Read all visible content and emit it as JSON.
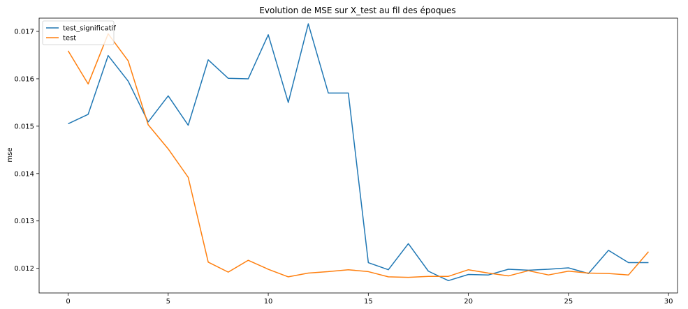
{
  "chart_data": {
    "type": "line",
    "title": "Evolution de MSE sur X_test au fil des époques",
    "xlabel": "",
    "ylabel": "mse",
    "xlim": [
      -1.45,
      30.45
    ],
    "ylim": [
      0.01148,
      0.01728
    ],
    "xticks": [
      0,
      5,
      10,
      15,
      20,
      25,
      30
    ],
    "xtick_labels": [
      "0",
      "5",
      "10",
      "15",
      "20",
      "25",
      "30"
    ],
    "yticks": [
      0.012,
      0.013,
      0.014,
      0.015,
      0.016,
      0.017
    ],
    "ytick_labels": [
      "0.012",
      "0.013",
      "0.014",
      "0.015",
      "0.016",
      "0.017"
    ],
    "grid": false,
    "legend_position": "top-left",
    "x": [
      0,
      1,
      2,
      3,
      4,
      5,
      6,
      7,
      8,
      9,
      10,
      11,
      12,
      13,
      14,
      15,
      16,
      17,
      18,
      19,
      20,
      21,
      22,
      23,
      24,
      25,
      26,
      27,
      28,
      29
    ],
    "series": [
      {
        "name": "test_significatif",
        "color": "#1f77b4",
        "values": [
          0.01505,
          0.01525,
          0.01649,
          0.01595,
          0.01509,
          0.01564,
          0.01502,
          0.0164,
          0.01601,
          0.016,
          0.01693,
          0.0155,
          0.01716,
          0.0157,
          0.0157,
          0.01212,
          0.01197,
          0.01252,
          0.01194,
          0.01174,
          0.01187,
          0.01186,
          0.01198,
          0.01196,
          0.01198,
          0.01201,
          0.01189,
          0.01238,
          0.01212,
          0.01212
        ]
      },
      {
        "name": "test",
        "color": "#ff7f0e",
        "values": [
          0.01659,
          0.01589,
          0.01695,
          0.01638,
          0.01503,
          0.01452,
          0.01392,
          0.01213,
          0.01192,
          0.01217,
          0.01198,
          0.01182,
          0.0119,
          0.01193,
          0.01197,
          0.01193,
          0.01182,
          0.01181,
          0.01183,
          0.01183,
          0.01197,
          0.0119,
          0.01184,
          0.01195,
          0.01186,
          0.01194,
          0.0119,
          0.01189,
          0.01186,
          0.01235
        ]
      }
    ]
  }
}
